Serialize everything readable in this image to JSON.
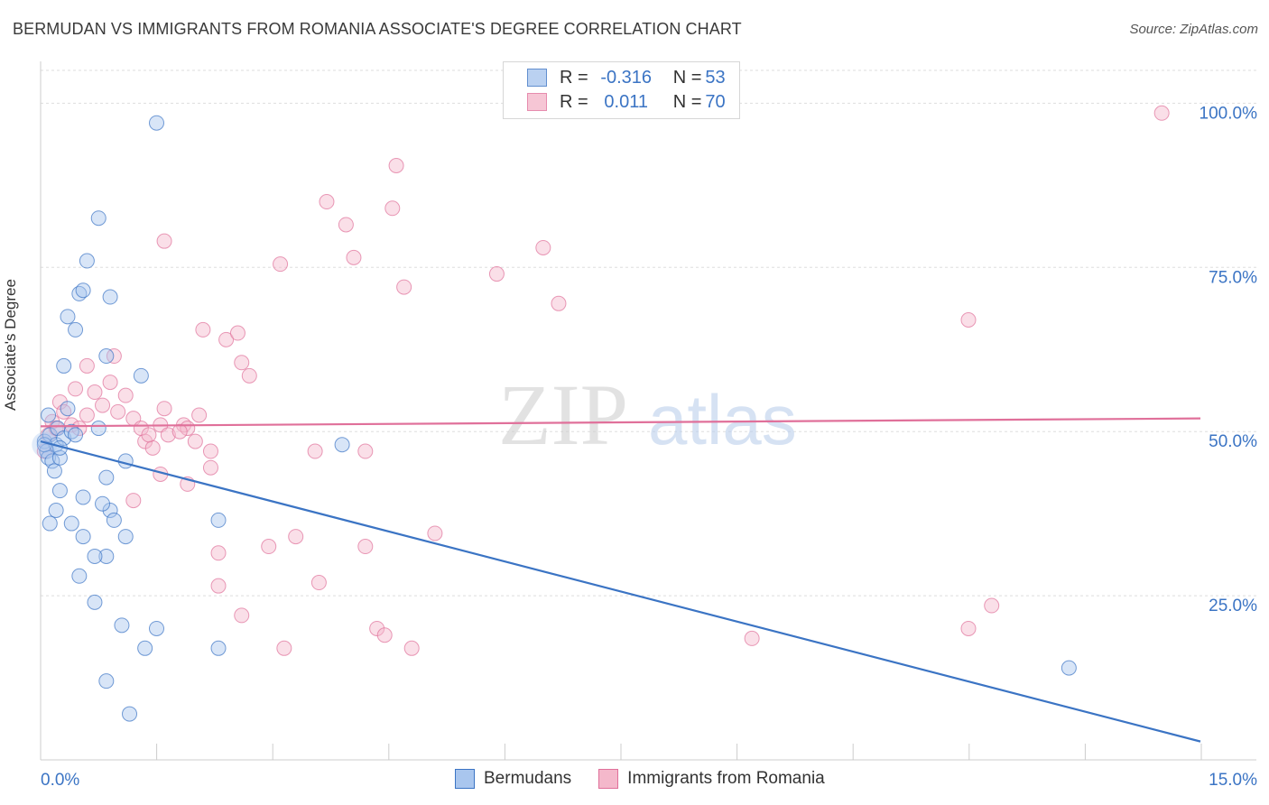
{
  "title": "BERMUDAN VS IMMIGRANTS FROM ROMANIA ASSOCIATE'S DEGREE CORRELATION CHART",
  "source": "Source: ZipAtlas.com",
  "watermark": {
    "zip": "ZIP",
    "atlas": "atlas"
  },
  "colors": {
    "blue": "#3b74c4",
    "blue_fill": "#a9c6ee",
    "pink": "#e0709a",
    "pink_fill": "#f4b8cb",
    "grid": "#dddddd"
  },
  "legend": {
    "rows": [
      {
        "r_label": "R = ",
        "r_value": "-0.316",
        "n_label": "N = ",
        "n_value": "53"
      },
      {
        "r_label": "R = ",
        "r_value": "0.011",
        "n_label": "N = ",
        "n_value": "70"
      }
    ]
  },
  "bottom_legend": {
    "blue_label": "Bermudans",
    "pink_label": "Immigrants from Romania"
  },
  "chart_data": {
    "type": "scatter",
    "title": "BERMUDAN VS IMMIGRANTS FROM ROMANIA ASSOCIATE'S DEGREE CORRELATION CHART",
    "xlabel": "",
    "ylabel": "Associate's Degree",
    "xlim": [
      0,
      15
    ],
    "ylim": [
      0,
      105
    ],
    "x_tick_labels": [
      "0.0%",
      "15.0%"
    ],
    "y_ticks": [
      25,
      50,
      75,
      100
    ],
    "y_tick_labels": [
      "25.0%",
      "50.0%",
      "75.0%",
      "100.0%"
    ],
    "series": [
      {
        "name": "Bermudans",
        "trend": {
          "x": [
            0,
            15
          ],
          "y": [
            48.5,
            2.8
          ]
        },
        "points": [
          [
            0.05,
            48.5
          ],
          [
            0.08,
            47.0
          ],
          [
            0.1,
            46.0
          ],
          [
            0.12,
            49.5
          ],
          [
            0.15,
            45.5
          ],
          [
            0.2,
            48.0
          ],
          [
            0.18,
            44.0
          ],
          [
            0.22,
            50.5
          ],
          [
            0.25,
            46.0
          ],
          [
            0.3,
            49.0
          ],
          [
            0.1,
            52.5
          ],
          [
            0.35,
            53.5
          ],
          [
            0.4,
            50.0
          ],
          [
            0.45,
            49.5
          ],
          [
            0.3,
            60.0
          ],
          [
            0.35,
            67.5
          ],
          [
            0.45,
            65.5
          ],
          [
            0.5,
            71.0
          ],
          [
            0.55,
            71.5
          ],
          [
            0.6,
            76.0
          ],
          [
            0.75,
            82.5
          ],
          [
            0.75,
            50.5
          ],
          [
            0.85,
            61.5
          ],
          [
            0.9,
            70.5
          ],
          [
            0.25,
            41.0
          ],
          [
            0.2,
            38.0
          ],
          [
            0.12,
            36.0
          ],
          [
            0.4,
            36.0
          ],
          [
            0.55,
            40.0
          ],
          [
            0.85,
            43.0
          ],
          [
            0.9,
            38.0
          ],
          [
            0.95,
            36.5
          ],
          [
            1.1,
            34.0
          ],
          [
            1.1,
            45.5
          ],
          [
            1.3,
            58.5
          ],
          [
            1.05,
            20.5
          ],
          [
            0.85,
            12.0
          ],
          [
            1.35,
            17.0
          ],
          [
            0.5,
            28.0
          ],
          [
            0.85,
            31.0
          ],
          [
            0.7,
            24.0
          ],
          [
            2.3,
            17.0
          ],
          [
            1.15,
            7.0
          ],
          [
            1.5,
            20.0
          ],
          [
            0.55,
            34.0
          ],
          [
            0.7,
            31.0
          ],
          [
            2.3,
            36.5
          ],
          [
            0.8,
            39.0
          ],
          [
            3.9,
            48.0
          ],
          [
            13.3,
            14.0
          ],
          [
            1.5,
            97.0
          ],
          [
            0.05,
            48.0
          ],
          [
            0.25,
            47.5
          ]
        ]
      },
      {
        "name": "Immigrants from Romania",
        "trend": {
          "x": [
            0,
            15
          ],
          "y": [
            50.8,
            52.0
          ]
        },
        "points": [
          [
            0.05,
            47.0
          ],
          [
            0.1,
            49.5
          ],
          [
            0.15,
            51.5
          ],
          [
            0.2,
            50.5
          ],
          [
            0.25,
            54.5
          ],
          [
            0.3,
            53.0
          ],
          [
            0.4,
            51.0
          ],
          [
            0.5,
            50.5
          ],
          [
            0.6,
            52.5
          ],
          [
            0.7,
            56.0
          ],
          [
            0.8,
            54.0
          ],
          [
            0.9,
            57.5
          ],
          [
            1.0,
            53.0
          ],
          [
            1.1,
            55.5
          ],
          [
            1.2,
            52.0
          ],
          [
            1.3,
            50.5
          ],
          [
            1.35,
            48.5
          ],
          [
            1.45,
            47.5
          ],
          [
            1.55,
            51.0
          ],
          [
            1.65,
            49.5
          ],
          [
            1.85,
            51.0
          ],
          [
            1.9,
            50.5
          ],
          [
            2.0,
            48.5
          ],
          [
            2.2,
            47.0
          ],
          [
            0.6,
            60.0
          ],
          [
            0.95,
            61.5
          ],
          [
            1.2,
            39.5
          ],
          [
            1.55,
            43.5
          ],
          [
            1.9,
            42.0
          ],
          [
            2.2,
            44.5
          ],
          [
            2.1,
            65.5
          ],
          [
            2.4,
            64.0
          ],
          [
            2.55,
            65.0
          ],
          [
            2.6,
            60.5
          ],
          [
            2.7,
            58.5
          ],
          [
            1.6,
            79.0
          ],
          [
            3.1,
            75.5
          ],
          [
            3.7,
            85.0
          ],
          [
            3.95,
            81.5
          ],
          [
            4.05,
            76.5
          ],
          [
            4.6,
            90.5
          ],
          [
            4.55,
            84.0
          ],
          [
            4.7,
            72.0
          ],
          [
            5.9,
            74.0
          ],
          [
            6.5,
            78.0
          ],
          [
            6.7,
            69.5
          ],
          [
            3.55,
            47.0
          ],
          [
            4.2,
            47.0
          ],
          [
            5.1,
            34.5
          ],
          [
            2.3,
            31.5
          ],
          [
            2.95,
            32.5
          ],
          [
            3.3,
            34.0
          ],
          [
            4.2,
            32.5
          ],
          [
            2.3,
            26.5
          ],
          [
            2.6,
            22.0
          ],
          [
            3.6,
            27.0
          ],
          [
            3.15,
            17.0
          ],
          [
            4.35,
            20.0
          ],
          [
            4.45,
            19.0
          ],
          [
            4.8,
            17.0
          ],
          [
            9.2,
            18.5
          ],
          [
            12.0,
            20.0
          ],
          [
            12.3,
            23.5
          ],
          [
            12.0,
            67.0
          ],
          [
            14.5,
            98.5
          ],
          [
            1.8,
            50.0
          ],
          [
            2.05,
            52.5
          ],
          [
            0.45,
            56.5
          ],
          [
            1.4,
            49.5
          ],
          [
            1.6,
            53.5
          ]
        ]
      }
    ]
  }
}
